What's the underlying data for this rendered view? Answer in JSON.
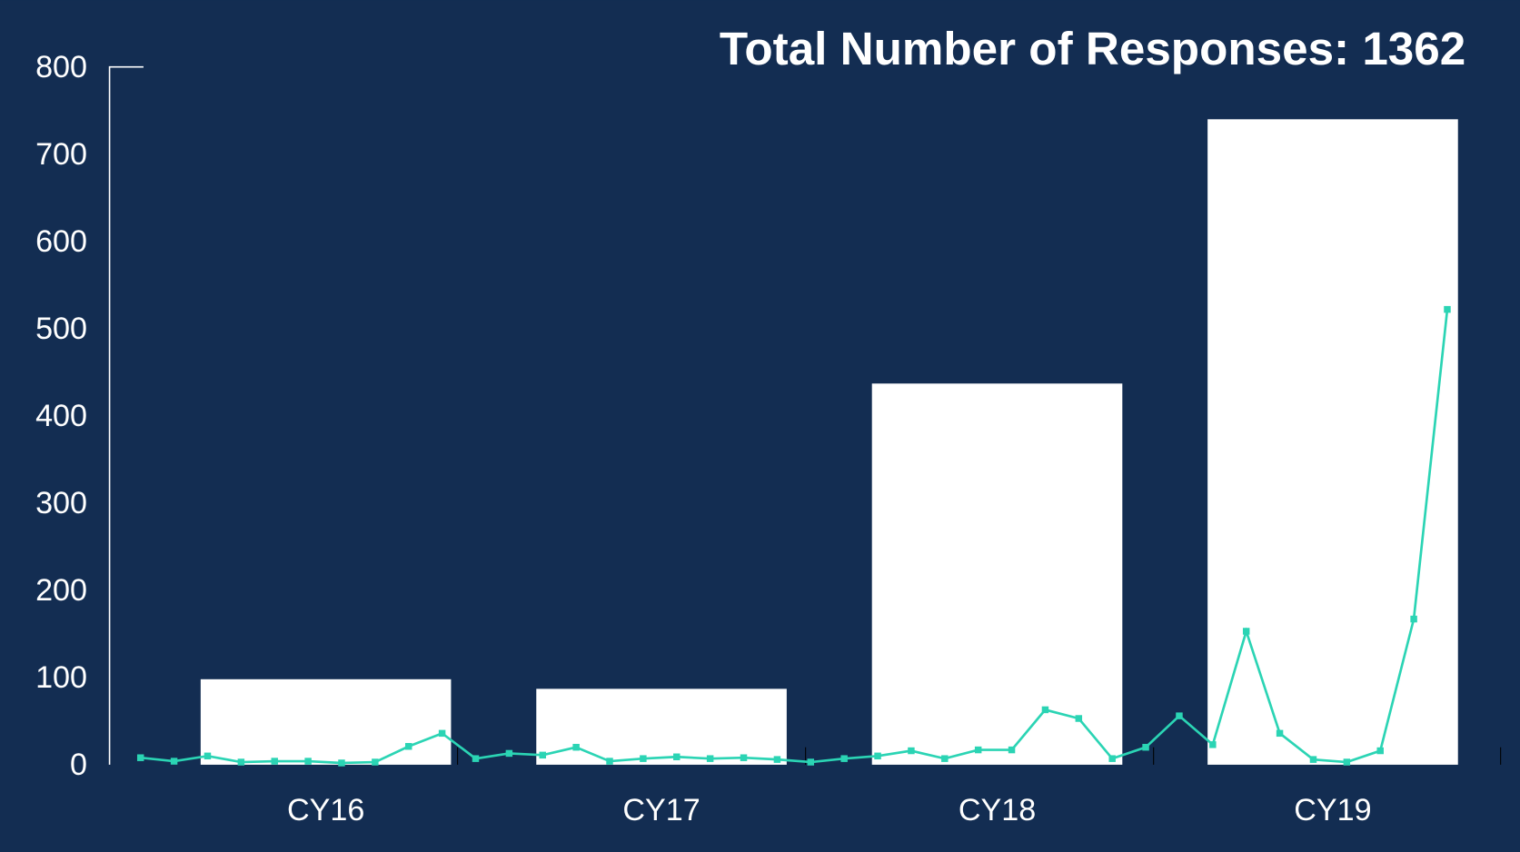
{
  "chart_data": {
    "type": "bar",
    "title": "Total Number of Responses: 1362",
    "categories": [
      "CY16",
      "CY17",
      "CY18",
      "CY19"
    ],
    "values": [
      98,
      87,
      437,
      740
    ],
    "color": "#ffffff",
    "ylim": [
      0,
      800
    ],
    "yticks": [
      0,
      100,
      200,
      300,
      400,
      500,
      600,
      700,
      800
    ],
    "line_series": {
      "color": "#2bd4b4",
      "values": [
        8,
        4,
        10,
        3,
        4,
        4,
        2,
        3,
        21,
        36,
        7,
        13,
        11,
        20,
        4,
        7,
        9,
        7,
        8,
        6,
        3,
        7,
        10,
        16,
        7,
        17,
        17,
        63,
        53,
        7,
        20,
        56,
        23,
        153,
        36,
        6,
        3,
        16,
        167,
        522
      ]
    }
  }
}
